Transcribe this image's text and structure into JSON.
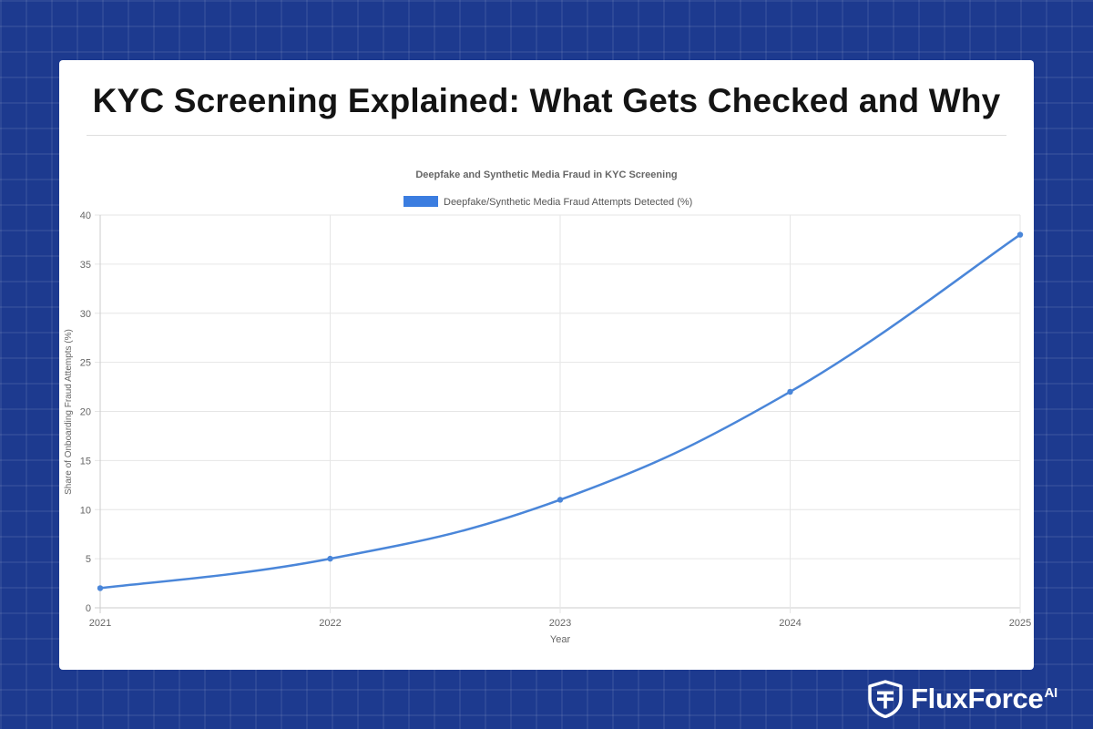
{
  "page": {
    "title": "KYC Screening Explained: What Gets Checked and Why"
  },
  "brand": {
    "name": "FluxForce",
    "suffix": "AI",
    "logo_icon": "shield-icon"
  },
  "colors": {
    "background": "#1d3a8f",
    "card": "#ffffff",
    "series": "#4a86d9",
    "legend_swatch": "#3b7de0"
  },
  "chart_data": {
    "type": "line",
    "title": "Deepfake and Synthetic Media Fraud in KYC Screening",
    "xlabel": "Year",
    "ylabel": "Share of Onboarding Fraud Attempts (%)",
    "categories": [
      "2021",
      "2022",
      "2023",
      "2024",
      "2025"
    ],
    "series": [
      {
        "name": "Deepfake/Synthetic Media Fraud Attempts Detected (%)",
        "values": [
          2,
          5,
          11,
          22,
          38
        ]
      }
    ],
    "ylim": [
      0,
      40
    ],
    "yticks": [
      "0",
      "5",
      "10",
      "15",
      "20",
      "25",
      "30",
      "35",
      "40"
    ],
    "grid": true,
    "legend_position": "top-center"
  }
}
